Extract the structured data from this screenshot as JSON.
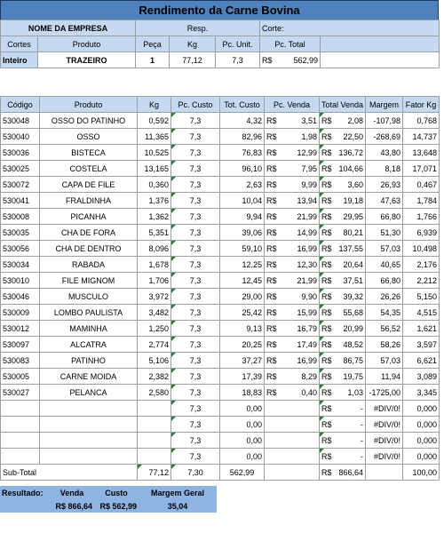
{
  "title": "Rendimento da Carne Bovina",
  "header": {
    "company_label": "NOME DA EMPRESA",
    "resp_label": "Resp.",
    "corte_label": "Corte:",
    "col_cortes": "Cortes",
    "col_produto": "Produto",
    "col_peca": "Peça",
    "col_kg": "Kg",
    "col_pc_unit": "Pc. Unit.",
    "col_pc_total": "Pc. Total",
    "row": {
      "cortes": "Inteiro",
      "produto": "TRAZEIRO",
      "peca": "1",
      "kg": "77,12",
      "pc_unit": "7,3",
      "currency": "R$",
      "pc_total": "562,99"
    }
  },
  "table": {
    "columns": [
      "Código",
      "Produto",
      "Kg",
      "Pc. Custo",
      "Tot. Custo",
      "Pc. Venda",
      "Total Venda",
      "Margem",
      "Fator Kg"
    ],
    "rows": [
      {
        "codigo": "530048",
        "produto": "OSSO DO PATINHO",
        "kg": "0,592",
        "pc_custo": "7,3",
        "tot_custo": "4,32",
        "pc_venda": "3,51",
        "total_venda": "2,08",
        "margem": "-107,98",
        "fator": "0,768"
      },
      {
        "codigo": "530040",
        "produto": "OSSO",
        "kg": "11,365",
        "pc_custo": "7,3",
        "tot_custo": "82,96",
        "pc_venda": "1,98",
        "total_venda": "22,50",
        "margem": "-268,69",
        "fator": "14,737"
      },
      {
        "codigo": "530036",
        "produto": "BISTECA",
        "kg": "10,525",
        "pc_custo": "7,3",
        "tot_custo": "76,83",
        "pc_venda": "12,99",
        "total_venda": "136,72",
        "margem": "43,80",
        "fator": "13,648"
      },
      {
        "codigo": "530025",
        "produto": "COSTELA",
        "kg": "13,165",
        "pc_custo": "7,3",
        "tot_custo": "96,10",
        "pc_venda": "7,95",
        "total_venda": "104,66",
        "margem": "8,18",
        "fator": "17,071"
      },
      {
        "codigo": "530072",
        "produto": "CAPA DE FILE",
        "kg": "0,360",
        "pc_custo": "7,3",
        "tot_custo": "2,63",
        "pc_venda": "9,99",
        "total_venda": "3,60",
        "margem": "26,93",
        "fator": "0,467"
      },
      {
        "codigo": "530041",
        "produto": "FRALDINHA",
        "kg": "1,376",
        "pc_custo": "7,3",
        "tot_custo": "10,04",
        "pc_venda": "13,94",
        "total_venda": "19,18",
        "margem": "47,63",
        "fator": "1,784"
      },
      {
        "codigo": "530008",
        "produto": "PICANHA",
        "kg": "1,362",
        "pc_custo": "7,3",
        "tot_custo": "9,94",
        "pc_venda": "21,99",
        "total_venda": "29,95",
        "margem": "66,80",
        "fator": "1,766"
      },
      {
        "codigo": "530035",
        "produto": "CHA DE FORA",
        "kg": "5,351",
        "pc_custo": "7,3",
        "tot_custo": "39,06",
        "pc_venda": "14,99",
        "total_venda": "80,21",
        "margem": "51,30",
        "fator": "6,939"
      },
      {
        "codigo": "530056",
        "produto": "CHA DE DENTRO",
        "kg": "8,096",
        "pc_custo": "7,3",
        "tot_custo": "59,10",
        "pc_venda": "16,99",
        "total_venda": "137,55",
        "margem": "57,03",
        "fator": "10,498"
      },
      {
        "codigo": "530034",
        "produto": "RABADA",
        "kg": "1,678",
        "pc_custo": "7,3",
        "tot_custo": "12,25",
        "pc_venda": "12,30",
        "total_venda": "20,64",
        "margem": "40,65",
        "fator": "2,176"
      },
      {
        "codigo": "530010",
        "produto": "FILE MIGNOM",
        "kg": "1,706",
        "pc_custo": "7,3",
        "tot_custo": "12,45",
        "pc_venda": "21,99",
        "total_venda": "37,51",
        "margem": "66,80",
        "fator": "2,212"
      },
      {
        "codigo": "530046",
        "produto": "MUSCULO",
        "kg": "3,972",
        "pc_custo": "7,3",
        "tot_custo": "29,00",
        "pc_venda": "9,90",
        "total_venda": "39,32",
        "margem": "26,26",
        "fator": "5,150"
      },
      {
        "codigo": "530009",
        "produto": "LOMBO PAULISTA",
        "kg": "3,482",
        "pc_custo": "7,3",
        "tot_custo": "25,42",
        "pc_venda": "15,99",
        "total_venda": "55,68",
        "margem": "54,35",
        "fator": "4,515"
      },
      {
        "codigo": "530012",
        "produto": "MAMINHA",
        "kg": "1,250",
        "pc_custo": "7,3",
        "tot_custo": "9,13",
        "pc_venda": "16,79",
        "total_venda": "20,99",
        "margem": "56,52",
        "fator": "1,621"
      },
      {
        "codigo": "530097",
        "produto": "ALCATRA",
        "kg": "2,774",
        "pc_custo": "7,3",
        "tot_custo": "20,25",
        "pc_venda": "17,49",
        "total_venda": "48,52",
        "margem": "58,26",
        "fator": "3,597"
      },
      {
        "codigo": "530083",
        "produto": "PATINHO",
        "kg": "5,106",
        "pc_custo": "7,3",
        "tot_custo": "37,27",
        "pc_venda": "16,99",
        "total_venda": "86,75",
        "margem": "57,03",
        "fator": "6,621"
      },
      {
        "codigo": "530005",
        "produto": "CARNE MOIDA",
        "kg": "2,382",
        "pc_custo": "7,3",
        "tot_custo": "17,39",
        "pc_venda": "8,29",
        "total_venda": "19,75",
        "margem": "11,94",
        "fator": "3,089"
      },
      {
        "codigo": "530027",
        "produto": "PELANCA",
        "kg": "2,580",
        "pc_custo": "7,3",
        "tot_custo": "18,83",
        "pc_venda": "0,40",
        "total_venda": "1,03",
        "margem": "-1725,00",
        "fator": "3,345"
      },
      {
        "codigo": "",
        "produto": "",
        "kg": "",
        "pc_custo": "7,3",
        "tot_custo": "0,00",
        "pc_venda": "",
        "total_venda": "-",
        "margem": "#DIV/0!",
        "fator": "0,000"
      },
      {
        "codigo": "",
        "produto": "",
        "kg": "",
        "pc_custo": "7,3",
        "tot_custo": "0,00",
        "pc_venda": "",
        "total_venda": "-",
        "margem": "#DIV/0!",
        "fator": "0,000"
      },
      {
        "codigo": "",
        "produto": "",
        "kg": "",
        "pc_custo": "7,3",
        "tot_custo": "0,00",
        "pc_venda": "",
        "total_venda": "-",
        "margem": "#DIV/0!",
        "fator": "0,000"
      },
      {
        "codigo": "",
        "produto": "",
        "kg": "",
        "pc_custo": "7,3",
        "tot_custo": "0,00",
        "pc_venda": "",
        "total_venda": "-",
        "margem": "#DIV/0!",
        "fator": "0,000"
      }
    ],
    "currency_pc_venda": "R$",
    "currency_total_venda": "R$",
    "subtotal": {
      "label": "Sub-Total",
      "kg": "77,12",
      "pc_custo": "7,30",
      "tot_custo": "562,99",
      "currency": "R$",
      "total_venda": "866,64",
      "fator": "100,00"
    }
  },
  "resultado": {
    "label": "Resultado:",
    "venda_label": "Venda",
    "custo_label": "Custo",
    "margem_label": "Margem Geral",
    "venda": "R$ 866,64",
    "custo": "R$ 562,99",
    "margem": "35,04"
  }
}
